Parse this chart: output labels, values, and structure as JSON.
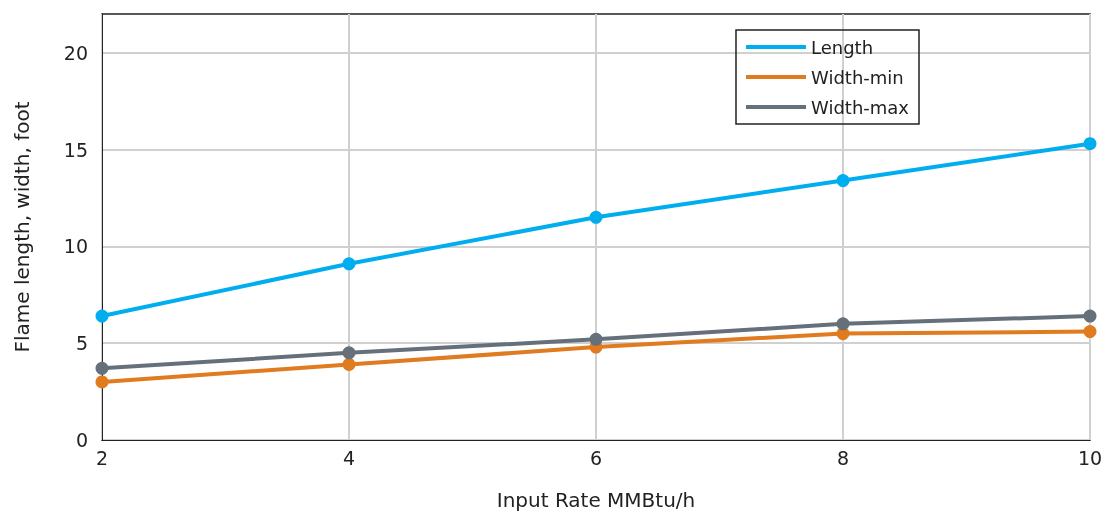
{
  "chart_data": {
    "type": "line",
    "xlabel": "Input Rate MMBtu/h",
    "ylabel": "Flame length, width, foot",
    "x": [
      2,
      4,
      6,
      8,
      10
    ],
    "series": [
      {
        "name": "Length",
        "color": "#00aeef",
        "values": [
          6.4,
          9.1,
          11.5,
          13.4,
          15.3
        ]
      },
      {
        "name": "Width-min",
        "color": "#e07b1f",
        "values": [
          3.0,
          3.9,
          4.8,
          5.5,
          5.6
        ]
      },
      {
        "name": "Width-max",
        "color": "#66707a",
        "values": [
          3.7,
          4.5,
          5.2,
          6.0,
          6.4
        ]
      }
    ],
    "xlim": [
      2,
      10
    ],
    "xticks": [
      2,
      4,
      6,
      8,
      10
    ],
    "ylim": [
      0,
      22
    ],
    "yticks": [
      0,
      5,
      10,
      15,
      20
    ],
    "grid": true,
    "legend": "top right",
    "marker": "circle",
    "line_style": "solid"
  }
}
